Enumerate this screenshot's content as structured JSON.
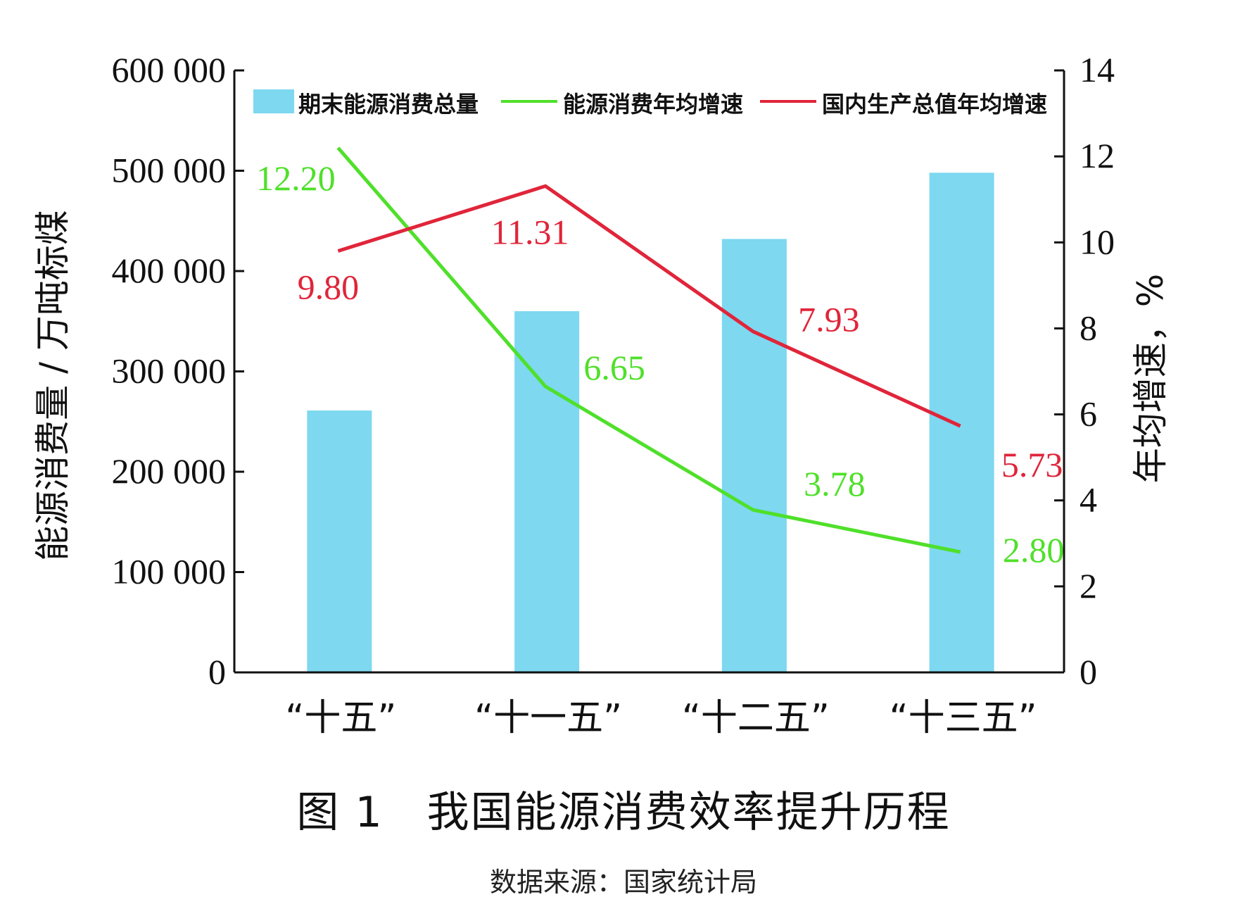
{
  "chart_data": {
    "type": "bar",
    "title": "图 1　我国能源消费效率提升历程",
    "source": "数据来源：国家统计局",
    "categories": [
      "“十五”",
      "“十一五”",
      "“十二五”",
      "“十三五”"
    ],
    "y_left": {
      "label": "能源消费量 / 万吨标煤",
      "lim": [
        0,
        600000
      ],
      "ticks": [
        0,
        100000,
        200000,
        300000,
        400000,
        500000,
        600000
      ],
      "tick_labels": [
        "0",
        "100 000",
        "200 000",
        "300 000",
        "400 000",
        "500 000",
        "600 000"
      ]
    },
    "y_right": {
      "label": "年均增速，%",
      "lim": [
        0,
        14
      ],
      "ticks": [
        0,
        2,
        4,
        6,
        8,
        10,
        12,
        14
      ],
      "tick_labels": [
        "0",
        "2",
        "4",
        "6",
        "8",
        "10",
        "12",
        "14"
      ]
    },
    "series": [
      {
        "name": "期末能源消费总量",
        "type": "bar",
        "axis": "left",
        "color": "#7dd8f0",
        "values": [
          261000,
          360000,
          432000,
          498000
        ]
      },
      {
        "name": "能源消费年均增速",
        "type": "line",
        "axis": "right",
        "color": "#4fe02a",
        "values": [
          12.2,
          6.65,
          3.78,
          2.8
        ],
        "data_labels": [
          "12.20",
          "6.65",
          "3.78",
          "2.80"
        ]
      },
      {
        "name": "国内生产总值年均增速",
        "type": "line",
        "axis": "right",
        "color": "#e0253a",
        "values": [
          9.8,
          11.31,
          7.93,
          5.73
        ],
        "data_labels": [
          "9.80",
          "11.31",
          "7.93",
          "5.73"
        ]
      }
    ],
    "legend": {
      "position": "top",
      "entries": [
        "期末能源消费总量",
        "能源消费年均增速",
        "国内生产总值年均增速"
      ]
    },
    "grid": false
  }
}
